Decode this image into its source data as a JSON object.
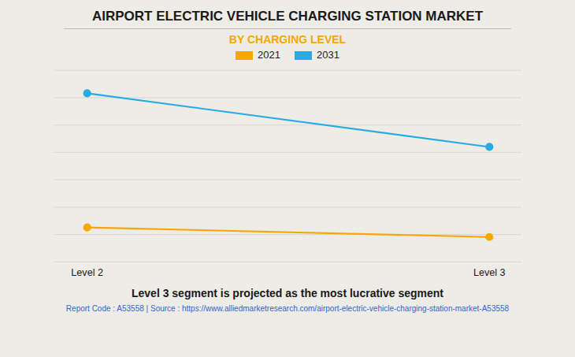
{
  "chart_data": {
    "type": "line",
    "title": "AIRPORT ELECTRIC VEHICLE CHARGING STATION MARKET",
    "subtitle": "BY CHARGING LEVEL",
    "categories": [
      "Level 2",
      "Level 3"
    ],
    "series": [
      {
        "name": "2021",
        "color": "#F5A800",
        "values": [
          0.18,
          0.13
        ]
      },
      {
        "name": "2031",
        "color": "#29ABE2",
        "values": [
          0.88,
          0.6
        ]
      }
    ],
    "ylim": [
      0,
      1.0
    ],
    "yticks": [
      0,
      0.14285714285714285,
      0.2857142857142857,
      0.42857142857142855,
      0.5714285714285714,
      0.7142857142857143,
      0.8571428571428571,
      1.0
    ],
    "grid": true,
    "tick_labels": "x",
    "legend": "top",
    "marker": "circle",
    "footnote": "Level 3 segment is projected as the most lucrative segment",
    "source": "Report Code : A53558  |  Source : https://www.alliedmarketresearch.com/airport-electric-vehicle-charging-station-market-A53558"
  }
}
